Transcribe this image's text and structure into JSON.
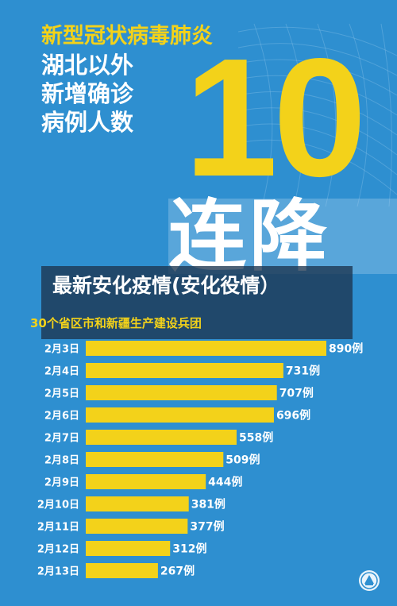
{
  "header": {
    "title_line1": "新型冠状病毒肺炎",
    "title_line2": "湖北以外",
    "title_line3": "新增确诊",
    "title_line4": "病例人数",
    "big_number": "10",
    "big_text": "连降"
  },
  "overlay": {
    "text": "最新安化疫情(安化役情）"
  },
  "subtitle": "30个省区市和新疆生产建设兵团",
  "colors": {
    "background": "#2e8fd0",
    "accent": "#f3d21a",
    "text": "#ffffff",
    "overlay": "#1c344e"
  },
  "chart_data": {
    "type": "bar",
    "orientation": "horizontal",
    "categories": [
      "2月3日",
      "2月4日",
      "2月5日",
      "2月6日",
      "2月7日",
      "2月8日",
      "2月9日",
      "2月10日",
      "2月11日",
      "2月12日",
      "2月13日"
    ],
    "values": [
      890,
      731,
      707,
      696,
      558,
      509,
      444,
      381,
      377,
      312,
      267
    ],
    "value_labels": [
      "890例",
      "731例",
      "707例",
      "696例",
      "558例",
      "509例",
      "444例",
      "381例",
      "377例",
      "312例",
      "267例"
    ],
    "title": "",
    "xlabel": "",
    "ylabel": "",
    "xlim": [
      0,
      890
    ],
    "grid": false,
    "legend": "none"
  }
}
